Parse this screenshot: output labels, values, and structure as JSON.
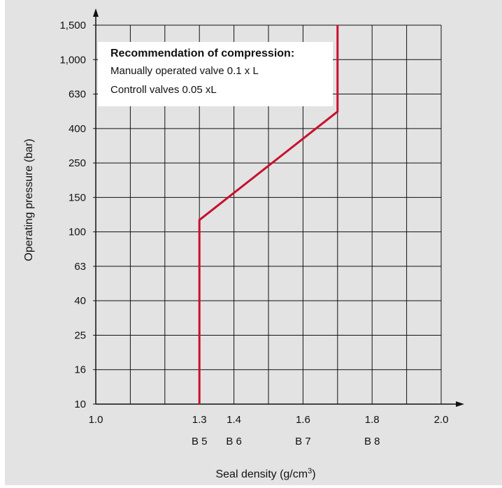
{
  "chart_data": {
    "type": "line",
    "xlabel": "Seal density (g/cm",
    "xlabel_sup": "3",
    "xlabel_close": ")",
    "ylabel": "Operating pressure (bar)",
    "x_ticks": [
      "1.0",
      "1.3",
      "1.4",
      "1.6",
      "1.8",
      "2.0"
    ],
    "x_tick_values": [
      1.0,
      1.3,
      1.4,
      1.6,
      1.8,
      2.0
    ],
    "y_ticks": [
      "10",
      "16",
      "25",
      "40",
      "63",
      "100",
      "150",
      "250",
      "400",
      "630",
      "1,000",
      "1,500"
    ],
    "y_tick_values": [
      10,
      16,
      25,
      40,
      63,
      100,
      150,
      250,
      400,
      630,
      1000,
      1500
    ],
    "xlim": [
      1.0,
      2.0
    ],
    "grid": true,
    "grade_labels": [
      {
        "label": "B 5",
        "x": 1.3
      },
      {
        "label": "B 6",
        "x": 1.4
      },
      {
        "label": "B 7",
        "x": 1.6
      },
      {
        "label": "B 8",
        "x": 1.8
      }
    ],
    "series": [
      {
        "color": "#c8102e",
        "points": [
          {
            "x": 1.3,
            "y": 10
          },
          {
            "x": 1.3,
            "y": 115
          },
          {
            "x": 1.7,
            "y": 500
          },
          {
            "x": 1.7,
            "y": 1500
          }
        ]
      }
    ],
    "annotation": {
      "title": "Recommendation of compression:",
      "lines": [
        "Manually operated valve 0.1 x L",
        "Controll valves 0.05 xL"
      ]
    }
  }
}
